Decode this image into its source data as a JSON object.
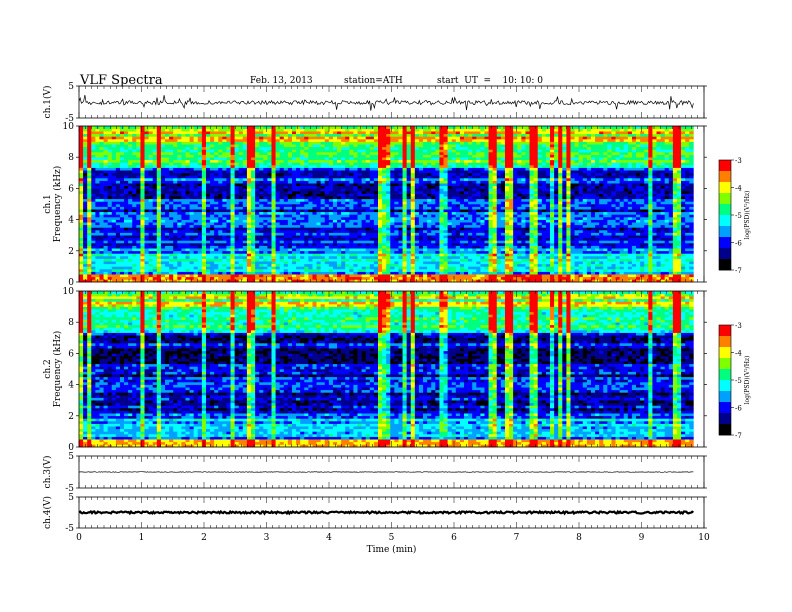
{
  "header": {
    "title": "VLF  Spectra",
    "date": "Feb. 13, 2013",
    "station": "station=ATH",
    "start": "start  UT  =    10: 10: 0"
  },
  "chart_data": {
    "type": "heatmap",
    "x_axis": {
      "label": "Time  (min)",
      "range": [
        0,
        10
      ],
      "ticks": [
        0,
        1,
        2,
        3,
        4,
        5,
        6,
        7,
        8,
        9,
        10
      ],
      "data_end": 9.83
    },
    "panels": [
      {
        "kind": "line",
        "ylabel": "ch.1(V)",
        "ylim": [
          -5,
          5
        ],
        "yticks": [
          -5,
          5
        ],
        "level": -0.2,
        "noise": "high"
      },
      {
        "kind": "spectrogram",
        "ylabel_top": "ch.1",
        "ylabel": "Frequency  (kHz)",
        "ylim": [
          0,
          10
        ],
        "yticks": [
          0,
          2,
          4,
          6,
          8,
          10
        ],
        "colorbar": {
          "label": "log(PSD)(V²/Hz)",
          "range": [
            -7,
            -3
          ],
          "ticks": [
            -3,
            -4,
            -5,
            -6,
            -7
          ]
        }
      },
      {
        "kind": "spectrogram",
        "ylabel_top": "ch.2",
        "ylabel": "Frequency  (kHz)",
        "ylim": [
          0,
          10
        ],
        "yticks": [
          0,
          2,
          4,
          6,
          8,
          10
        ],
        "colorbar": {
          "label": "log(PSD)(V²/Hz)",
          "range": [
            -7,
            -3
          ],
          "ticks": [
            -3,
            -4,
            -5,
            -6,
            -7
          ]
        }
      },
      {
        "kind": "line",
        "ylabel": "ch.3(V)",
        "ylim": [
          -5,
          5
        ],
        "yticks": [
          -5,
          5
        ],
        "level": 0.0,
        "noise": "low"
      },
      {
        "kind": "line",
        "ylabel": "ch.4(V)",
        "ylim": [
          -5,
          5
        ],
        "yticks": [
          -5,
          5
        ],
        "level": 0.0,
        "noise": "thick"
      }
    ],
    "colorscale": [
      "#000000",
      "#00008b",
      "#0000ff",
      "#00a0ff",
      "#00ffff",
      "#00ff7f",
      "#7fff00",
      "#ffff00",
      "#ff7f00",
      "#ff0000",
      "#ffffff"
    ]
  }
}
